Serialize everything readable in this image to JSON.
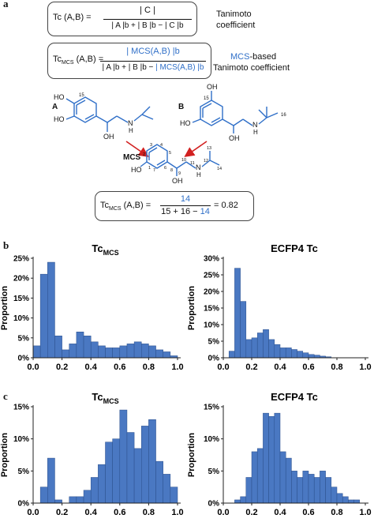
{
  "panels": {
    "a": "a",
    "b": "b",
    "c": "c"
  },
  "tanimoto": {
    "lhs": "Tc (A,B) =",
    "numerator": "| C |",
    "num_sub": "b",
    "denominator": "| A |b + | B |b − | C |b",
    "caption_line1": "Tanimoto",
    "caption_line2": "coefficient"
  },
  "mcs_formula": {
    "lhs": "Tc",
    "lhs_sub": "MCS",
    "lhs_rest": "(A,B) =",
    "numerator": "| MCS(A,B) |b",
    "denominator_black": "| A |b + | B |b − ",
    "denominator_blue": "| MCS(A,B) |b",
    "caption_blue": "MCS",
    "caption_line1_rest": "-based",
    "caption_line2": "Tanimoto coefficient"
  },
  "molecules": {
    "a_label": "A",
    "b_label": "B",
    "mcs_label": "MCS",
    "a_atoms": {
      "n15": "15",
      "ho_top": "HO",
      "ho_bottom": "HO",
      "oh": "OH",
      "n": "N",
      "h": "H"
    },
    "b_atoms": {
      "oh_top": "OH",
      "n15": "15",
      "ho": "HO",
      "oh": "OH",
      "n": "N",
      "h": "H",
      "n16": "16"
    },
    "mcs_atoms": {
      "ho": "HO",
      "oh": "OH",
      "n": "N",
      "h": "H",
      "n1": "1",
      "n2": "2",
      "n3": "3",
      "n4": "4",
      "n5": "5",
      "n6": "6",
      "n7": "7",
      "n8": "8",
      "n9": "9",
      "n10": "10",
      "n11": "11",
      "n12": "12",
      "n13": "13",
      "n14": "14"
    }
  },
  "result_formula": {
    "lhs": "Tc",
    "lhs_sub": "MCS",
    "lhs_rest": "(A,B) =",
    "numerator": "14",
    "denominator_black": "15 + 16 − ",
    "denominator_blue": "14",
    "result": "= 0.82"
  },
  "colors": {
    "bar": "#4a78c2",
    "bar_edge": "#2a4e8a",
    "accent_blue": "#2f6fc8",
    "arrow_red": "#d22020"
  },
  "chart_data": [
    {
      "type": "bar",
      "panel": "b",
      "title": "Tc",
      "title_sub": "MCS",
      "ylabel": "Proportion",
      "xlim": [
        0,
        1
      ],
      "ylim": [
        0,
        0.25
      ],
      "xticks": [
        "0.0",
        "0.2",
        "0.4",
        "0.6",
        "0.8",
        "1.0"
      ],
      "yticks": [
        "0%",
        "5%",
        "10%",
        "15%",
        "20%",
        "25%"
      ],
      "bin_width": 0.05,
      "values": [
        0.03,
        0.21,
        0.24,
        0.055,
        0.02,
        0.035,
        0.065,
        0.055,
        0.04,
        0.03,
        0.025,
        0.025,
        0.03,
        0.035,
        0.04,
        0.035,
        0.03,
        0.02,
        0.015,
        0.005
      ]
    },
    {
      "type": "bar",
      "panel": "b",
      "title": "ECFP4 Tc",
      "title_sub": "",
      "ylabel": "Proportion",
      "xlim": [
        0,
        1
      ],
      "ylim": [
        0,
        0.3
      ],
      "xticks": [
        "0.0",
        "0.2",
        "0.4",
        "0.6",
        "0.8",
        "1.0"
      ],
      "yticks": [
        "0%",
        "5%",
        "10%",
        "15%",
        "20%",
        "25%",
        "30%"
      ],
      "bin_width": 0.04,
      "values": [
        0.0,
        0.02,
        0.27,
        0.17,
        0.055,
        0.06,
        0.075,
        0.085,
        0.055,
        0.04,
        0.03,
        0.03,
        0.025,
        0.02,
        0.015,
        0.01,
        0.008,
        0.005,
        0.003,
        0.0,
        0.0,
        0.0,
        0.0,
        0.0,
        0.0
      ]
    },
    {
      "type": "bar",
      "panel": "c",
      "title": "Tc",
      "title_sub": "MCS",
      "ylabel": "Proportion",
      "xlim": [
        0,
        1
      ],
      "ylim": [
        0,
        0.15
      ],
      "xticks": [
        "0.0",
        "0.2",
        "0.4",
        "0.6",
        "0.8",
        "1.0"
      ],
      "yticks": [
        "0%",
        "5%",
        "10%",
        "15%"
      ],
      "bin_width": 0.05,
      "values": [
        0.0,
        0.025,
        0.07,
        0.005,
        0.0,
        0.01,
        0.01,
        0.02,
        0.04,
        0.06,
        0.095,
        0.1,
        0.145,
        0.11,
        0.085,
        0.12,
        0.13,
        0.065,
        0.045,
        0.025
      ]
    },
    {
      "type": "bar",
      "panel": "c",
      "title": "ECFP4 Tc",
      "title_sub": "",
      "ylabel": "Proportion",
      "xlim": [
        0,
        1
      ],
      "ylim": [
        0,
        0.15
      ],
      "xticks": [
        "0.0",
        "0.2",
        "0.4",
        "0.6",
        "0.8",
        "1.0"
      ],
      "yticks": [
        "0%",
        "5%",
        "10%",
        "15%"
      ],
      "bin_width": 0.04,
      "values": [
        0.0,
        0.0,
        0.005,
        0.01,
        0.04,
        0.08,
        0.085,
        0.14,
        0.135,
        0.14,
        0.08,
        0.07,
        0.05,
        0.04,
        0.05,
        0.045,
        0.04,
        0.05,
        0.04,
        0.025,
        0.015,
        0.01,
        0.005,
        0.005,
        0.0
      ]
    }
  ]
}
